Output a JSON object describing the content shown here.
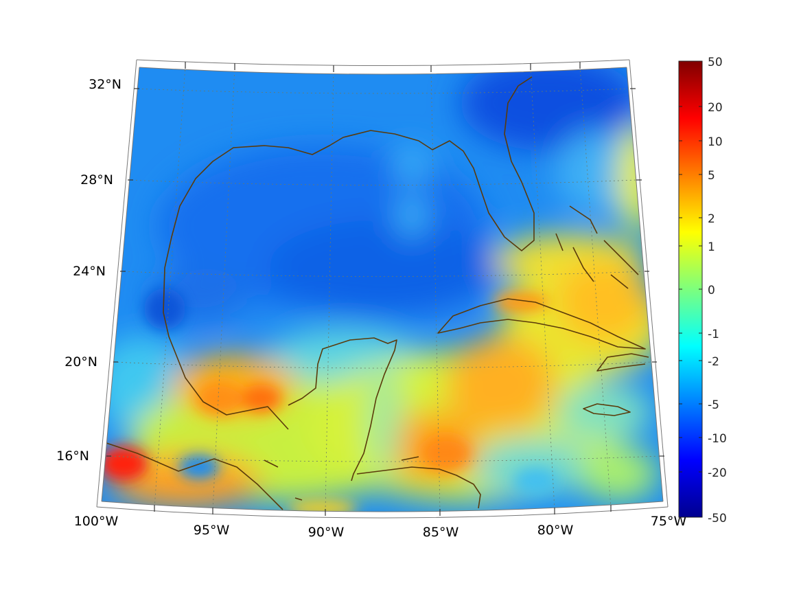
{
  "map": {
    "region": "Gulf of Mexico and Caribbean",
    "projection": "conic",
    "longitude_labels": [
      "100°W",
      "95°W",
      "90°W",
      "85°W",
      "80°W",
      "75°W"
    ],
    "latitude_labels": [
      "16°N",
      "20°N",
      "24°N",
      "28°N",
      "32°N"
    ],
    "lon_range": [
      -100,
      -75
    ],
    "lat_range": [
      14,
      33
    ],
    "coastline_color": "#5a3a0a",
    "grid": "dotted"
  },
  "colorbar": {
    "colormap": "jet",
    "tick_labels": [
      "50",
      "20",
      "10",
      "5",
      "2",
      "1",
      "0",
      "-1",
      "-2",
      "-5",
      "-10",
      "-20",
      "-50"
    ],
    "range": [
      -50,
      50
    ],
    "scale": "symmetric-log"
  }
}
